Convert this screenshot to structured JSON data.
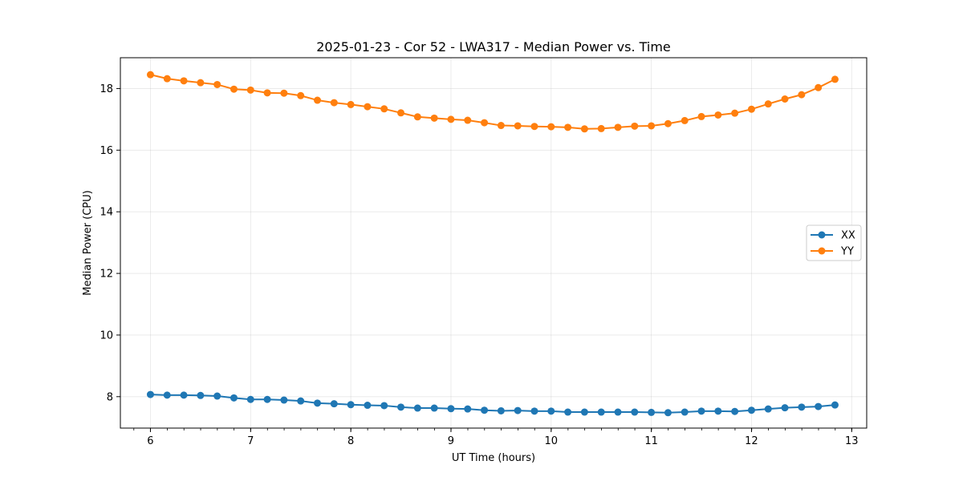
{
  "chart_data": {
    "type": "line",
    "title": "2025-01-23 - Cor 52 - LWA317 - Median Power vs. Time",
    "xlabel": "UT Time (hours)",
    "ylabel": "Median Power (CPU)",
    "xlim": [
      5.7,
      13.15
    ],
    "ylim": [
      6.98,
      19.0
    ],
    "xticks": [
      6,
      7,
      8,
      9,
      10,
      11,
      12,
      13
    ],
    "xminor_step": 0.1667,
    "yticks": [
      8,
      10,
      12,
      14,
      16,
      18
    ],
    "grid": true,
    "legend_position": "center-right",
    "x": [
      6.0,
      6.1667,
      6.3333,
      6.5,
      6.6667,
      6.8333,
      7.0,
      7.1667,
      7.3333,
      7.5,
      7.6667,
      7.8333,
      8.0,
      8.1667,
      8.3333,
      8.5,
      8.6667,
      8.8333,
      9.0,
      9.1667,
      9.3333,
      9.5,
      9.6667,
      9.8333,
      10.0,
      10.1667,
      10.3333,
      10.5,
      10.6667,
      10.8333,
      11.0,
      11.1667,
      11.3333,
      11.5,
      11.6667,
      11.8333,
      12.0,
      12.1667,
      12.3333,
      12.5,
      12.6667,
      12.8333
    ],
    "series": [
      {
        "name": "XX",
        "color": "#1f77b4",
        "values": [
          8.07,
          8.05,
          8.05,
          8.04,
          8.02,
          7.96,
          7.91,
          7.91,
          7.89,
          7.86,
          7.79,
          7.77,
          7.74,
          7.72,
          7.71,
          7.66,
          7.63,
          7.63,
          7.61,
          7.6,
          7.56,
          7.54,
          7.55,
          7.53,
          7.53,
          7.5,
          7.5,
          7.5,
          7.5,
          7.5,
          7.49,
          7.48,
          7.5,
          7.53,
          7.53,
          7.52,
          7.56,
          7.6,
          7.64,
          7.66,
          7.68,
          7.73
        ]
      },
      {
        "name": "YY",
        "color": "#ff7f0e",
        "values": [
          18.45,
          18.32,
          18.25,
          18.19,
          18.13,
          17.98,
          17.95,
          17.86,
          17.85,
          17.77,
          17.62,
          17.54,
          17.48,
          17.41,
          17.34,
          17.21,
          17.08,
          17.04,
          17.0,
          16.97,
          16.89,
          16.8,
          16.79,
          16.77,
          16.76,
          16.74,
          16.69,
          16.7,
          16.74,
          16.78,
          16.79,
          16.86,
          16.96,
          17.09,
          17.14,
          17.2,
          17.33,
          17.5,
          17.66,
          17.8,
          18.03,
          18.3
        ]
      }
    ]
  }
}
